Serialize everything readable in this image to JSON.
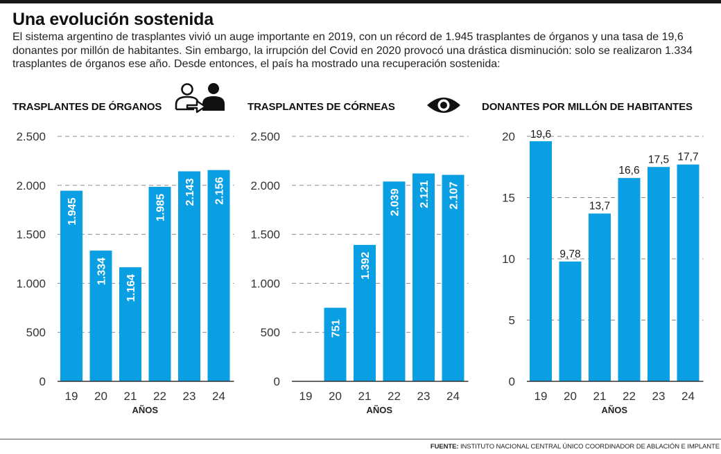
{
  "header": {
    "title": "Una evolución sostenida",
    "intro": "El sistema argentino de trasplantes vivió un auge importante en 2019, con un récord de 1.945 trasplantes de órganos y una tasa de 19,6 donantes por millón de habitantes. Sin embargo, la irrupción del Covid en 2020 provocó una drástica disminución: solo se realizaron 1.334 trasplantes de órganos ese año. Desde entonces, el país ha mostrado una recuperación sostenida:"
  },
  "icons": {
    "organ_panel": "organ-transfer-people-icon",
    "cornea_panel": "eye-icon"
  },
  "colors": {
    "bar": "#0a9ee2",
    "grid": "#888888",
    "text": "#1a1a1a"
  },
  "footer": {
    "source_label": "FUENTE:",
    "source_text": "INSTITUTO NACIONAL CENTRAL ÚNICO COORDINADOR DE ABLACIÓN E IMPLANTE"
  },
  "chart_data": [
    {
      "type": "bar",
      "title": "TRASPLANTES DE ÓRGANOS",
      "xlabel": "AÑOS",
      "ylabel": "",
      "categories": [
        "19",
        "20",
        "21",
        "22",
        "23",
        "24"
      ],
      "values": [
        1945,
        1334,
        1164,
        1985,
        2143,
        2156
      ],
      "data_labels": [
        "1.945",
        "1.334",
        "1.164",
        "1.985",
        "2.143",
        "2.156"
      ],
      "label_style": "vertical-inside",
      "ylim": [
        0,
        2500
      ],
      "yticks": [
        0,
        500,
        1000,
        1500,
        2000,
        2500
      ],
      "ytick_labels": [
        "0",
        "500",
        "1.000",
        "1.500",
        "2.000",
        "2.500"
      ],
      "grid": true
    },
    {
      "type": "bar",
      "title": "TRASPLANTES DE CÓRNEAS",
      "xlabel": "AÑOS",
      "ylabel": "",
      "categories": [
        "19",
        "20",
        "21",
        "22",
        "23",
        "24"
      ],
      "values": [
        null,
        751,
        1392,
        2039,
        2121,
        2107
      ],
      "data_labels": [
        "",
        "751",
        "1.392",
        "2.039",
        "2.121",
        "2.107"
      ],
      "label_style": "vertical-inside",
      "ylim": [
        0,
        2500
      ],
      "yticks": [
        0,
        500,
        1000,
        1500,
        2000,
        2500
      ],
      "ytick_labels": [
        "0",
        "500",
        "1.000",
        "1.500",
        "2.000",
        "2.500"
      ],
      "grid": true
    },
    {
      "type": "bar",
      "title": "DONANTES POR MILLÓN DE HABITANTES",
      "xlabel": "AÑOS",
      "ylabel": "",
      "categories": [
        "19",
        "20",
        "21",
        "22",
        "23",
        "24"
      ],
      "values": [
        19.6,
        9.78,
        13.7,
        16.6,
        17.5,
        17.7
      ],
      "data_labels": [
        "19,6",
        "9,78",
        "13,7",
        "16,6",
        "17,5",
        "17,7"
      ],
      "label_style": "above",
      "ylim": [
        0,
        20
      ],
      "yticks": [
        0,
        5,
        10,
        15,
        20
      ],
      "ytick_labels": [
        "0",
        "5",
        "10",
        "15",
        "20"
      ],
      "grid": true
    }
  ]
}
